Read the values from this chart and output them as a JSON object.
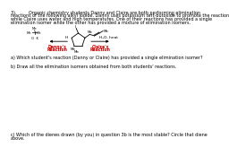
{
  "bg_color": "#ffffff",
  "text_color": "#000000",
  "red_color": "#cc0000",
  "line1": "3).         Organic chemistry students Danny and Claire are both performing elimination",
  "line2": "reactions of the following alkyl iodide. Danny uses potassium tert-butoxide to promote the reaction",
  "line3": "while Claire uses water and high temperatures. One of their reactions has provided a single",
  "line4": "elimination isomer while the other has provided a mixture of elimination isomers.",
  "reagent_right": "H₂O, heat",
  "label_danny": "Danny's",
  "label_danny2": "Reaction",
  "label_claire": "Claire's",
  "label_claire2": "Reaction",
  "question_a": "a) Which student's reaction (Danny or Claire) has provided a single elimination isomer?",
  "question_b": "b) Draw all the elimination isomers obtained from both students' reactions.",
  "question_c": "c) Which of the dienes drawn (by you) in question 3b is the most stable? Circle that diene",
  "question_c2": "above.",
  "fs_body": 3.5,
  "fs_label": 3.8,
  "fs_mol": 3.2
}
